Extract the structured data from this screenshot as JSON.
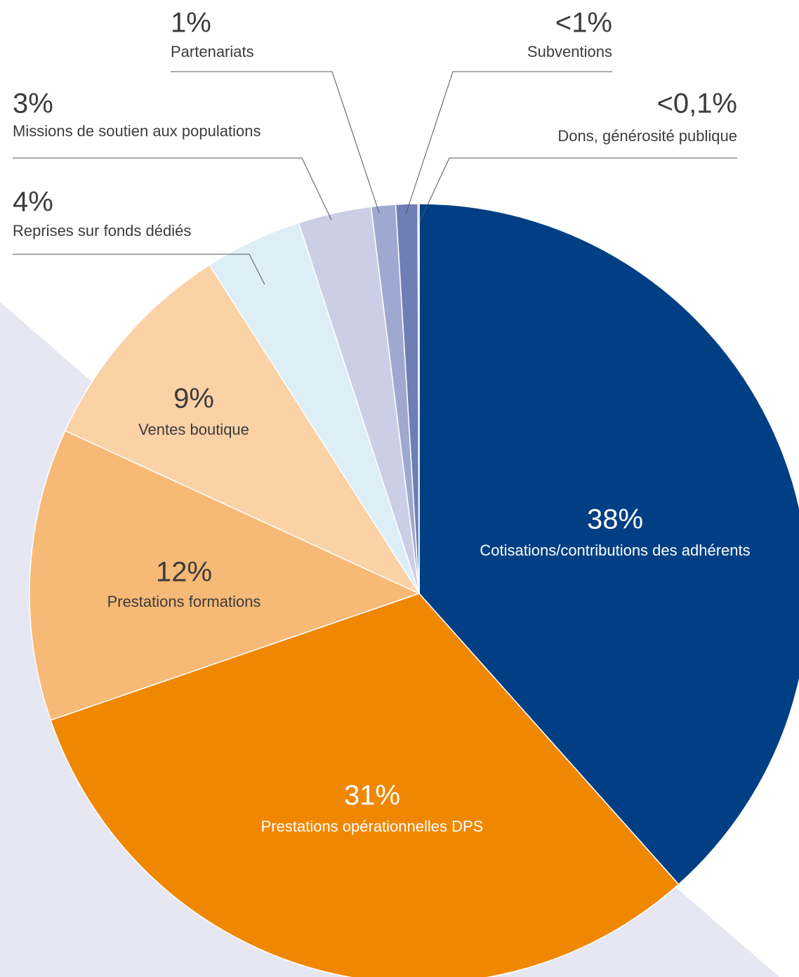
{
  "chart_data": {
    "type": "pie",
    "categories": [
      "Cotisations/contributions des adhérents",
      "Prestations opérationnelles DPS",
      "Prestations formations",
      "Ventes boutique",
      "Reprises sur fonds dédiés",
      "Missions de soutien aux populations",
      "Partenariats",
      "Subventions",
      "Dons, générosité publique"
    ],
    "values": [
      38,
      31,
      12,
      9,
      4,
      3,
      1,
      0.9,
      0.05
    ],
    "value_labels": [
      "38%",
      "31%",
      "12%",
      "9%",
      "4%",
      "3%",
      "1%",
      "<1%",
      "<0,1%"
    ],
    "colors": [
      "#003f84",
      "#f08700",
      "#f7b976",
      "#fbd1a6",
      "#ddeef7",
      "#cbcfe6",
      "#9ea8d0",
      "#6e7fb5",
      "#4a5c9d"
    ]
  }
}
